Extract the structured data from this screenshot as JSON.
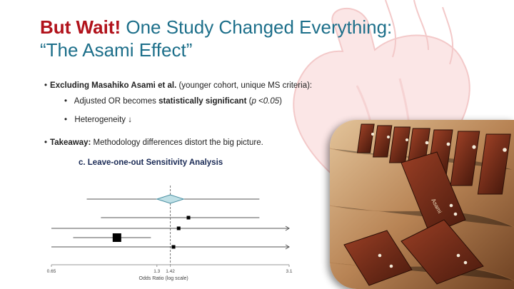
{
  "slide": {
    "title_emphasis": "But Wait!",
    "title_rest": " One Study Changed Everything:",
    "title_line2": "“The Asami Effect”",
    "bullets": [
      {
        "bold": "Excluding Masahiko Asami et al.",
        "rest": " (younger cohort, unique MS criteria):"
      },
      {
        "pre": "Adjusted OR becomes ",
        "bold": "statistically significant",
        "rest_pre": " (",
        "italic": "p <0.05",
        "rest_post": ")"
      },
      {
        "text": "Heterogeneity ↓"
      },
      {
        "bold": "Takeaway:",
        "rest": " Methodology differences distort the big picture."
      }
    ],
    "photo": {
      "domino_label": "Asami"
    }
  },
  "chart_data": {
    "type": "forest",
    "title": "c. Leave-one-out Sensitivity Analysis",
    "xlabel": "Odds Ratio (log scale)",
    "x_scale": "log",
    "xlim": [
      0.65,
      3.1
    ],
    "tick_labels": [
      "0.65",
      "1.3",
      "1.42",
      "3.1"
    ],
    "tick_values": [
      0.65,
      1.3,
      1.42,
      3.1
    ],
    "reference_line": 1.42,
    "pooled": {
      "estimate": 1.42,
      "ci": [
        1.3,
        1.55
      ]
    },
    "rows": [
      {
        "estimate": 1.42,
        "ci": [
          0.82,
          2.55
        ],
        "marker": "diamond"
      },
      {
        "estimate": 1.6,
        "ci": [
          0.9,
          2.55
        ],
        "marker": "square",
        "weight": 1
      },
      {
        "estimate": 1.5,
        "ci": [
          0.65,
          3.1
        ],
        "arrow_right": true,
        "marker": "square",
        "weight": 1
      },
      {
        "estimate": 1.0,
        "ci": [
          0.75,
          1.25
        ],
        "marker": "square",
        "weight": 2.4
      },
      {
        "estimate": 1.45,
        "ci": [
          0.65,
          3.1
        ],
        "arrow_right": true,
        "marker": "square",
        "weight": 1
      }
    ],
    "colors": {
      "diamond_fill": "#bfe0e6",
      "diamond_stroke": "#4a8fa2",
      "marker": "#000000",
      "line": "#555555"
    }
  },
  "colors": {
    "title_red": "#b1121b",
    "title_blue": "#1d6f8a"
  }
}
